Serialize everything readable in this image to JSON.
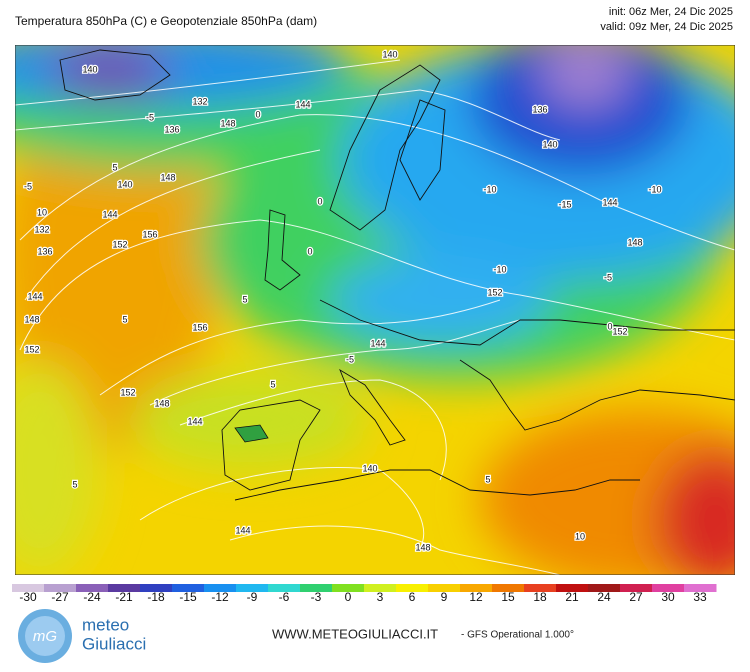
{
  "header": {
    "title": "Temperatura 850hPa (C) e Geopotenziale 850hPa (dam)",
    "init": "init: 06z Mer, 24 Dic 2025",
    "valid": "valid: 09z Mer, 24 Dic 2025"
  },
  "map": {
    "contour_labels": [
      "140",
      "132",
      "136",
      "144",
      "148",
      "5",
      "140",
      "148",
      "144",
      "152",
      "156",
      "136",
      "132",
      "144",
      "148",
      "152",
      "5",
      "156",
      "152",
      "148",
      "144",
      "140",
      "148",
      "144",
      "5",
      "5",
      "10",
      "-10",
      "-15",
      "-10",
      "-10",
      "-5",
      "-5",
      "0",
      "140",
      "144",
      "148",
      "152",
      "152",
      "144",
      "136",
      "-5",
      "0",
      "5",
      "5",
      "-5",
      "10",
      "0",
      "0",
      "140"
    ]
  },
  "colorbar": {
    "ticks": [
      -30,
      -27,
      -24,
      -21,
      -18,
      -15,
      -12,
      -9,
      -6,
      -3,
      0,
      3,
      6,
      9,
      12,
      15,
      18,
      21,
      24,
      27,
      30,
      33
    ],
    "colors": [
      "#d8c8e0",
      "#b8a0d0",
      "#8a60b8",
      "#5a3aa0",
      "#3040c0",
      "#2060e0",
      "#1890f0",
      "#20b8f0",
      "#30d8d0",
      "#30d070",
      "#80e020",
      "#d0f020",
      "#f8f000",
      "#f8d000",
      "#f8a800",
      "#f07800",
      "#e84020",
      "#c01010",
      "#a01818",
      "#d02050",
      "#e040a0",
      "#e070d0"
    ]
  },
  "footer": {
    "logo_icon": "mG",
    "logo_line1": "meteo",
    "logo_line2": "Giuliacci",
    "website": "WWW.METEOGIULIACCI.IT",
    "model": "- GFS Operational 1.000°"
  }
}
